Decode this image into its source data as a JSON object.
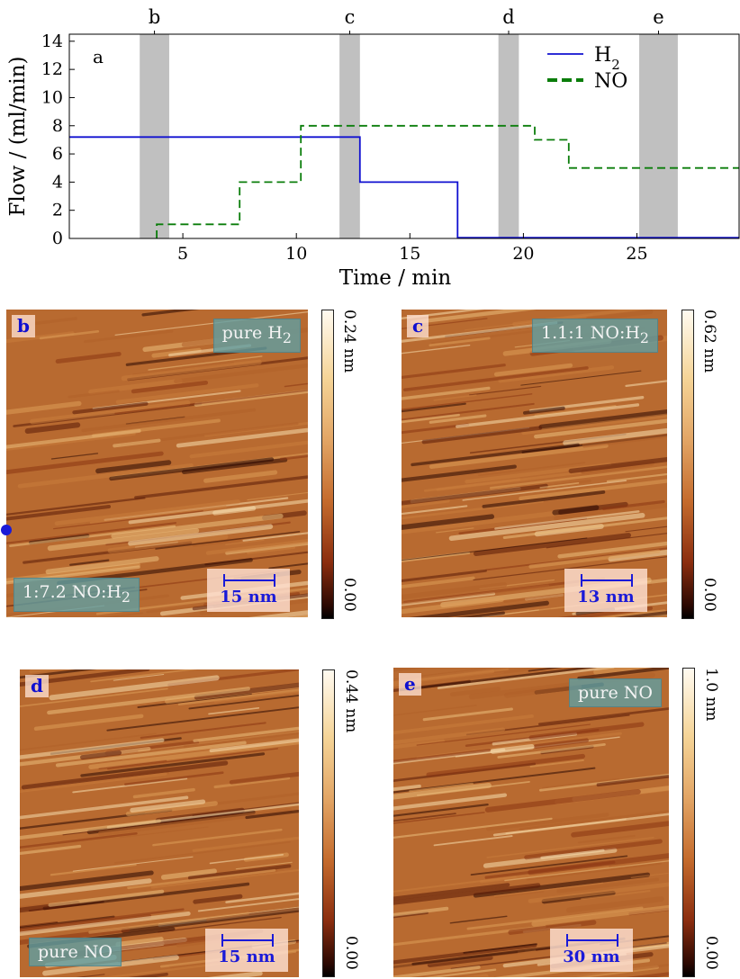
{
  "chart_data": {
    "type": "line",
    "panel_label": "a",
    "xlabel": "Time / min",
    "ylabel": "Flow / (ml/min)",
    "xlim": [
      0,
      29.5
    ],
    "ylim": [
      0,
      14.5
    ],
    "xticks": [
      5,
      10,
      15,
      20,
      25
    ],
    "yticks": [
      0,
      2,
      4,
      6,
      8,
      10,
      12,
      14
    ],
    "grid": false,
    "legend_position": "top-right",
    "series": [
      {
        "name": "H2",
        "color": "#1010d0",
        "style": "solid",
        "x": [
          0,
          12.8,
          12.8,
          17.1,
          17.1,
          29.5
        ],
        "y": [
          7.2,
          7.2,
          4.0,
          4.0,
          0.05,
          0.05
        ]
      },
      {
        "name": "NO",
        "color": "#0a7d0a",
        "style": "dashed",
        "x": [
          3.85,
          3.85,
          7.5,
          7.5,
          10.2,
          10.2,
          20.5,
          20.5,
          22.0,
          22.0,
          29.5
        ],
        "y": [
          0,
          1.0,
          1.0,
          4.0,
          4.0,
          8.0,
          8.0,
          7.0,
          7.0,
          5.0,
          5.0
        ]
      }
    ],
    "shaded_spans": [
      {
        "label": "b",
        "x0": 3.1,
        "x1": 4.4
      },
      {
        "label": "c",
        "x0": 11.9,
        "x1": 12.8
      },
      {
        "label": "d",
        "x0": 18.9,
        "x1": 19.8
      },
      {
        "label": "e",
        "x0": 25.1,
        "x1": 26.8
      }
    ]
  },
  "images": {
    "b": {
      "letter": "b",
      "gas_top": "pure H",
      "gas_top_sub": "2",
      "gas_bottom": "1:7.2 NO:H",
      "gas_bottom_sub": "2",
      "scale": "15 nm",
      "cb_max": "0.24 nm",
      "cb_min": "0.00"
    },
    "c": {
      "letter": "c",
      "gas_top": "1.1:1 NO:H",
      "gas_top_sub": "2",
      "scale": "13 nm",
      "cb_max": "0.62 nm",
      "cb_min": "0.00"
    },
    "d": {
      "letter": "d",
      "gas_bottom": "pure NO",
      "scale": "15 nm",
      "cb_max": "0.44 nm",
      "cb_min": "0.00"
    },
    "e": {
      "letter": "e",
      "gas_top": "pure NO",
      "scale": "30 nm",
      "cb_max": "1.0 nm",
      "cb_min": "0.00"
    }
  },
  "colors": {
    "h2": "#1010d0",
    "no": "#0a7d0a",
    "shade": "#c0c0c0"
  }
}
